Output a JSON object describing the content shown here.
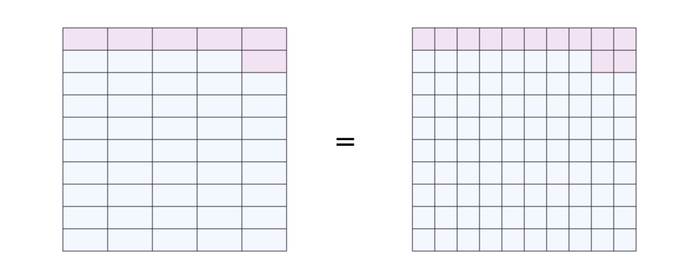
{
  "colors": {
    "base": "#f3f8ff",
    "highlight": "#f2e3f2",
    "stroke": "#2f2638"
  },
  "equals_symbol": "=",
  "grids": [
    {
      "name": "left-grid",
      "columns": 5,
      "rows": 10,
      "highlighted_cells": [
        [
          0,
          0
        ],
        [
          0,
          1
        ],
        [
          0,
          2
        ],
        [
          0,
          3
        ],
        [
          0,
          4
        ],
        [
          1,
          4
        ]
      ]
    },
    {
      "name": "right-grid",
      "columns": 10,
      "rows": 10,
      "highlighted_cells": [
        [
          0,
          0
        ],
        [
          0,
          1
        ],
        [
          0,
          2
        ],
        [
          0,
          3
        ],
        [
          0,
          4
        ],
        [
          0,
          5
        ],
        [
          0,
          6
        ],
        [
          0,
          7
        ],
        [
          0,
          8
        ],
        [
          0,
          9
        ],
        [
          1,
          8
        ],
        [
          1,
          9
        ]
      ]
    }
  ]
}
